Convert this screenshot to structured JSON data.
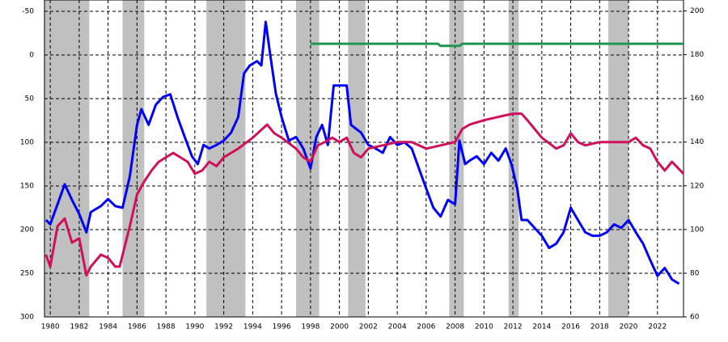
{
  "chart_data": {
    "type": "line",
    "xlim": [
      1979.6,
      2023.8
    ],
    "xticks": [
      1980,
      1982,
      1984,
      1986,
      1988,
      1990,
      1992,
      1994,
      1996,
      1998,
      2000,
      2002,
      2004,
      2006,
      2008,
      2010,
      2012,
      2014,
      2016,
      2018,
      2020,
      2022
    ],
    "ylim": [
      -63,
      300
    ],
    "y_inverted": true,
    "yticks": [
      -50,
      0,
      50,
      100,
      150,
      200,
      250,
      300
    ],
    "y2lim": [
      60,
      205
    ],
    "y2ticks": [
      60,
      80,
      100,
      120,
      140,
      160,
      180,
      200
    ],
    "grid": true,
    "shade_color": "#c0c0c0",
    "shaded_ranges": [
      [
        1979.6,
        1982.7
      ],
      [
        1985.0,
        1986.5
      ],
      [
        1990.8,
        1993.5
      ],
      [
        1997.0,
        1998.6
      ],
      [
        2000.6,
        2001.8
      ],
      [
        2007.6,
        2008.6
      ],
      [
        2011.7,
        2012.4
      ],
      [
        2018.6,
        2020.0
      ]
    ],
    "series": [
      {
        "color": "#0000ff",
        "axis": "y",
        "x": [
          1979.7,
          1980.0,
          1980.5,
          1981.0,
          1981.5,
          1982.0,
          1982.5,
          1982.8,
          1983.5,
          1984.0,
          1984.5,
          1985.0,
          1985.5,
          1986.0,
          1986.3,
          1986.8,
          1987.3,
          1987.8,
          1988.3,
          1988.8,
          1989.3,
          1989.8,
          1990.2,
          1990.6,
          1991.0,
          1991.5,
          1992.0,
          1992.5,
          1993.0,
          1993.4,
          1993.8,
          1994.3,
          1994.6,
          1994.9,
          1995.2,
          1995.6,
          1996.0,
          1996.5,
          1997.0,
          1997.5,
          1998.0,
          1998.4,
          1998.8,
          1999.2,
          1999.6,
          2000.0,
          2000.5,
          2000.8,
          2001.5,
          2002.0,
          2002.5,
          2003.0,
          2003.5,
          2004.0,
          2004.5,
          2005.0,
          2005.5,
          2006.0,
          2006.5,
          2007.0,
          2007.5,
          2008.0,
          2008.3,
          2008.7,
          2009.0,
          2009.5,
          2010.0,
          2010.5,
          2011.0,
          2011.5,
          2011.9,
          2012.3,
          2012.6,
          2013.0,
          2013.5,
          2014.0,
          2014.5,
          2015.0,
          2015.5,
          2016.0,
          2016.5,
          2017.0,
          2017.5,
          2018.0,
          2018.5,
          2019.0,
          2019.5,
          2020.0,
          2020.5,
          2021.0,
          2021.5,
          2022.0,
          2022.5,
          2023.0,
          2023.5
        ],
        "values": [
          189,
          194,
          171,
          148,
          166,
          182,
          203,
          180,
          173,
          165,
          173,
          175,
          139,
          80,
          62,
          80,
          57,
          48,
          45,
          71,
          94,
          116,
          125,
          103,
          107,
          103,
          98,
          89,
          71,
          21,
          12,
          7,
          12,
          -38,
          -2,
          44,
          71,
          98,
          94,
          107,
          130,
          94,
          80,
          103,
          35,
          35,
          35,
          80,
          89,
          103,
          107,
          112,
          94,
          103,
          100,
          107,
          130,
          153,
          175,
          185,
          166,
          171,
          98,
          125,
          121,
          116,
          125,
          112,
          121,
          107,
          125,
          153,
          189,
          189,
          198,
          207,
          221,
          216,
          203,
          175,
          189,
          203,
          207,
          207,
          203,
          194,
          198,
          189,
          203,
          216,
          235,
          253,
          244,
          257,
          262
        ]
      },
      {
        "color": "#d0105a",
        "axis": "y2",
        "x": [
          1979.7,
          1980.0,
          1980.5,
          1981.0,
          1981.5,
          1982.0,
          1982.5,
          1982.8,
          1983.5,
          1984.0,
          1984.5,
          1984.8,
          1985.5,
          1986.0,
          1986.5,
          1987.0,
          1987.5,
          1988.0,
          1988.5,
          1989.0,
          1989.5,
          1990.0,
          1990.5,
          1991.0,
          1991.5,
          1992.0,
          1993.0,
          1994.0,
          1995.0,
          1995.5,
          1996.0,
          1997.0,
          1997.5,
          1998.0,
          1998.5,
          1999.0,
          1999.5,
          2000.0,
          2000.5,
          2001.0,
          2001.5,
          2002.0,
          2003.0,
          2004.0,
          2005.0,
          2006.0,
          2007.0,
          2008.0,
          2008.5,
          2009.0,
          2010.0,
          2011.0,
          2012.0,
          2012.6,
          2013.0,
          2013.5,
          2014.0,
          2015.0,
          2015.5,
          2016.0,
          2016.5,
          2017.0,
          2018.0,
          2019.0,
          2020.0,
          2020.5,
          2021.0,
          2021.5,
          2022.0,
          2022.5,
          2023.0,
          2023.8
        ],
        "values": [
          88.5,
          83,
          101.5,
          105,
          94,
          96,
          79,
          83,
          88.5,
          87,
          83,
          83,
          101.5,
          116,
          122,
          127,
          131,
          133,
          135,
          133,
          131,
          125.5,
          127,
          131,
          129,
          133,
          137,
          142,
          148,
          144,
          142,
          137,
          133,
          131,
          138.5,
          140,
          142,
          140,
          142,
          135,
          133,
          137,
          138.5,
          140,
          140,
          137,
          138.5,
          140,
          146,
          148,
          150,
          151.5,
          153,
          153,
          150,
          146,
          142,
          137,
          138.5,
          144,
          140,
          138.5,
          140,
          140,
          140,
          142,
          138.5,
          137,
          131,
          127,
          131,
          125.5
        ]
      },
      {
        "color": "#1e9650",
        "axis": "y2",
        "x": [
          1998.0,
          2006.8,
          2007.0,
          2008.3,
          2008.5,
          2023.8
        ],
        "values": [
          185,
          185,
          184,
          184,
          185,
          185
        ]
      }
    ]
  }
}
